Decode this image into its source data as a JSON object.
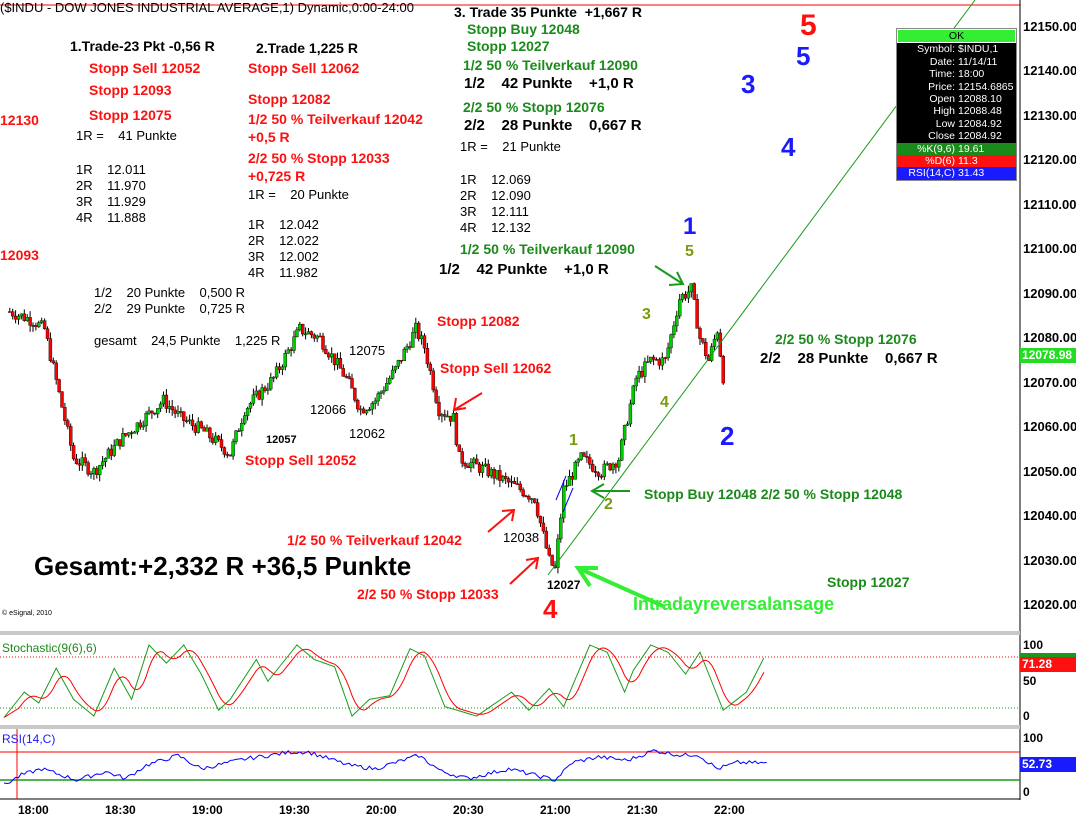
{
  "title": "($INDU - DOW JONES INDUSTRIAL AVERAGE,1) Dynamic,0:00-24:00",
  "copyright": "© eSignal, 2010",
  "info_box": {
    "ok": "OK",
    "rows": [
      {
        "k": "Symbol:",
        "v": "$INDU,1"
      },
      {
        "k": "Date:",
        "v": "11/14/11"
      },
      {
        "k": "Time:",
        "v": "18:00"
      },
      {
        "k": "Price:",
        "v": "12154.6865"
      },
      {
        "k": "Open",
        "v": "12088.10"
      },
      {
        "k": "High",
        "v": "12088.48"
      },
      {
        "k": "Low",
        "v": "12084.92"
      },
      {
        "k": "Close",
        "v": "12084.92"
      }
    ],
    "k_row": {
      "k": "%K(9,6)",
      "v": "19.61"
    },
    "d_row": {
      "k": "%D(6)",
      "v": "11.3"
    },
    "rsi_row": {
      "k": "RSI(14,C)",
      "v": "31.43"
    }
  },
  "colors": {
    "up": "#00cc00",
    "down": "#ff0000",
    "trend": "#1a9a1a",
    "k": "#1a9a1a",
    "d": "#ff0000",
    "rsi": "#0000ff"
  },
  "annotations": {
    "trade1": {
      "title": "1.Trade-23 Pkt -0,56 R",
      "stop_sell": "Stopp Sell 12052",
      "stop1": "Stopp 12093",
      "stop2": "Stopp 12075",
      "r": "1R =    41 Punkte",
      "levels": [
        "1R    12.011",
        "2R    11.970",
        "3R    11.929",
        "4R    11.888"
      ]
    },
    "left_12130": "12130",
    "left_12093": "12093",
    "trade2": {
      "title": "2.Trade 1,225 R",
      "stop_sell": "Stopp Sell 12062",
      "stop": "Stopp 12082",
      "partial": "1/2 50 % Teilverkauf 12042",
      "partial_r": "+0,5 R",
      "rest": "2/2 50 % Stopp 12033",
      "rest_r": "+0,725 R",
      "r": "1R =    20 Punkte",
      "levels": [
        "1R    12.042",
        "2R    12.022",
        "3R    12.002",
        "4R    11.982"
      ],
      "sum": [
        "1/2    20 Punkte    0,500 R",
        "2/2    29 Punkte    0,725 R",
        "gesamt    24,5 Punkte    1,225 R"
      ]
    },
    "trade3": {
      "title": "3. Trade 35 Punkte  +1,667 R",
      "stop_buy": "Stopp Buy 12048",
      "stop": "Stopp 12027",
      "partial": "1/2 50 % Teilverkauf 12090",
      "partial_res": "1/2    42 Punkte    +1,0 R",
      "rest": "2/2 50 % Stopp 12076",
      "rest_res": "2/2    28 Punkte    0,667 R",
      "r": "1R =    21 Punkte",
      "levels": [
        "1R    12.069",
        "2R    12.090",
        "3R    12.111",
        "4R    12.132"
      ],
      "partial2": "1/2 50 % Teilverkauf 12090",
      "partial2_res": "1/2    42 Punkte    +1,0 R"
    },
    "chart_labels": {
      "stopp_12082": "Stopp 12082",
      "p12075": "12075",
      "stopp_sell_12062": "Stopp Sell 12062",
      "p12066": "12066",
      "p12062": "12062",
      "p12057": "12057",
      "stopp_sell_12052": "Stopp Sell 12052",
      "teilverkauf_12042": "1/2 50 % Teilverkauf 12042",
      "p12038": "12038",
      "gesamt": "Gesamt:+2,332 R +36,5 Punkte",
      "stopp_12033": "2/2 50 % Stopp 12033",
      "p12027": "12027",
      "intraday": "Intradayreversalansage",
      "stopp_12027": "Stopp 12027",
      "stopp_buy_12048": "Stopp Buy 12048 2/2 50 % Stopp 12048",
      "stopp_12076": "2/2 50 % Stopp 12076",
      "res_28": "2/2    28 Punkte    0,667 R"
    },
    "waves": {
      "blue1": "1",
      "green5": "5",
      "green3": "3",
      "green4": "4",
      "green1": "1",
      "green2": "2",
      "blue2": "2",
      "red4": "4",
      "red5": "5",
      "blue5": "5",
      "blue3": "3",
      "blue4": "4"
    }
  },
  "chart_data": [
    {
      "type": "candlestick",
      "title": "($INDU - DOW JONES INDUSTRIAL AVERAGE,1) Dynamic,0:00-24:00",
      "x_unit": "minutes after 18:00",
      "ylim": [
        12015,
        12155
      ],
      "y_ticks": [
        "12020.00",
        "12030.00",
        "12040.00",
        "12050.00",
        "12060.00",
        "12070.00",
        "12080.00",
        "12090.00",
        "12100.00",
        "12110.00",
        "12120.00",
        "12130.00",
        "12140.00",
        "12150.00"
      ],
      "x_ticks": [
        "18:00",
        "18:30",
        "19:00",
        "19:30",
        "20:00",
        "20:30",
        "21:00",
        "21:30",
        "22:00"
      ],
      "last_price": "12078.98",
      "price_path": [
        [
          -8,
          12086
        ],
        [
          0,
          12084
        ],
        [
          4,
          12082
        ],
        [
          14,
          12053
        ],
        [
          21,
          12050
        ],
        [
          30,
          12057
        ],
        [
          45,
          12066
        ],
        [
          51,
          12062
        ],
        [
          59,
          12059
        ],
        [
          68,
          12054
        ],
        [
          73,
          12064
        ],
        [
          83,
          12071
        ],
        [
          92,
          12082
        ],
        [
          99,
          12080
        ],
        [
          108,
          12071
        ],
        [
          113,
          12064
        ],
        [
          118,
          12066
        ],
        [
          125,
          12073
        ],
        [
          132,
          12082
        ],
        [
          135,
          12078
        ],
        [
          140,
          12064
        ],
        [
          145,
          12062
        ],
        [
          147,
          12053
        ],
        [
          157,
          12050
        ],
        [
          168,
          12046
        ],
        [
          173,
          12044
        ],
        [
          178,
          12030
        ],
        [
          180,
          12028
        ],
        [
          183,
          12046
        ],
        [
          189,
          12053
        ],
        [
          196,
          12050
        ],
        [
          202,
          12053
        ],
        [
          208,
          12071
        ],
        [
          213,
          12075
        ],
        [
          218,
          12075
        ],
        [
          223,
          12089
        ],
        [
          227,
          12091
        ],
        [
          230,
          12080
        ],
        [
          233,
          12075
        ],
        [
          236,
          12082
        ],
        [
          239,
          12066
        ],
        [
          242,
          12080
        ],
        [
          249,
          12078
        ]
      ],
      "trendline": {
        "from": [
          180,
          12027
        ],
        "to_price_rising": true
      }
    },
    {
      "type": "line",
      "title": "Stochastic(9(6),6)",
      "ylim": [
        0,
        100
      ],
      "y_ticks": [
        "100",
        "50",
        "0"
      ],
      "levels": [
        80,
        20
      ],
      "last_value": "71.28",
      "k_series": [
        [
          -10,
          0
        ],
        [
          -3,
          35
        ],
        [
          2,
          20
        ],
        [
          8,
          68
        ],
        [
          14,
          25
        ],
        [
          21,
          2
        ],
        [
          28,
          68
        ],
        [
          34,
          25
        ],
        [
          40,
          100
        ],
        [
          46,
          75
        ],
        [
          52,
          100
        ],
        [
          58,
          60
        ],
        [
          64,
          10
        ],
        [
          68,
          25
        ],
        [
          77,
          80
        ],
        [
          81,
          50
        ],
        [
          91,
          100
        ],
        [
          97,
          80
        ],
        [
          104,
          70
        ],
        [
          110,
          2
        ],
        [
          116,
          25
        ],
        [
          123,
          30
        ],
        [
          130,
          95
        ],
        [
          135,
          85
        ],
        [
          142,
          15
        ],
        [
          153,
          2
        ],
        [
          165,
          35
        ],
        [
          171,
          10
        ],
        [
          178,
          40
        ],
        [
          183,
          15
        ],
        [
          192,
          100
        ],
        [
          198,
          90
        ],
        [
          204,
          35
        ],
        [
          207,
          65
        ],
        [
          213,
          100
        ],
        [
          219,
          90
        ],
        [
          225,
          60
        ],
        [
          230,
          90
        ],
        [
          238,
          10
        ],
        [
          246,
          35
        ],
        [
          252,
          82
        ]
      ]
    },
    {
      "type": "line",
      "title": "RSI(14,C)",
      "ylim": [
        0,
        100
      ],
      "y_ticks": [
        "100",
        "0"
      ],
      "levels": [
        70,
        30
      ],
      "last_value": "52.73",
      "series": [
        [
          -10,
          23
        ],
        [
          -4,
          37
        ],
        [
          3,
          46
        ],
        [
          15,
          30
        ],
        [
          25,
          42
        ],
        [
          32,
          32
        ],
        [
          39,
          51
        ],
        [
          50,
          65
        ],
        [
          58,
          46
        ],
        [
          73,
          60
        ],
        [
          89,
          70
        ],
        [
          95,
          70
        ],
        [
          109,
          51
        ],
        [
          118,
          46
        ],
        [
          133,
          65
        ],
        [
          141,
          42
        ],
        [
          150,
          32
        ],
        [
          164,
          46
        ],
        [
          180,
          30
        ],
        [
          186,
          55
        ],
        [
          195,
          63
        ],
        [
          205,
          58
        ],
        [
          214,
          72
        ],
        [
          224,
          65
        ],
        [
          229,
          67
        ],
        [
          236,
          46
        ],
        [
          243,
          55
        ],
        [
          253,
          54
        ]
      ]
    }
  ]
}
